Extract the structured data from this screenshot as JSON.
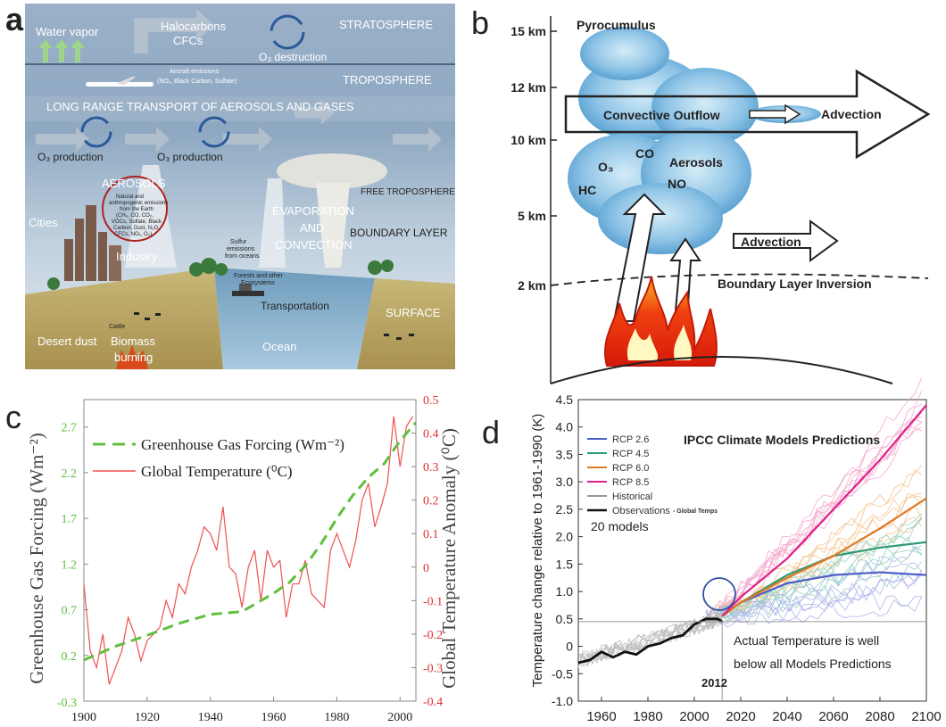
{
  "panels": {
    "a": {
      "letter": "a",
      "labels": {
        "water_vapor": "Water vapor",
        "halocarbons": "Halocarbons",
        "cfcs": "CFCs",
        "stratosphere": "STRATOSPHERE",
        "o3_destruction": "O₃ destruction",
        "aircraft_1": "Aircraft emissions",
        "aircraft_2": "(NOₓ, Black Carbon, Sulfate)",
        "troposphere": "TROPOSPHERE",
        "long_range": "LONG RANGE TRANSPORT OF AEROSOLS AND GASES",
        "o3_prod_1": "O₃ production",
        "o3_prod_2": "O₃ production",
        "aerosols": "AEROSOLS",
        "emis_1": "Natural and",
        "emis_2": "anthropogenic emissions",
        "emis_3": "from the Earth",
        "emis_4": "(CH₄, CO, CO₂,",
        "emis_5": "VOCs, Sulfate, Black",
        "emis_6": "Carbon, Dust, N₂O,",
        "emis_7": "CFCs, NOₓ, O₃)",
        "cities": "Cities",
        "industry": "Industry",
        "sulfur_1": "Sulfur",
        "sulfur_2": "emissions",
        "sulfur_3": "from oceans",
        "evap_1": "EVAPORATION",
        "evap_2": "AND",
        "evap_3": "CONVECTION",
        "free_trop": "FREE TROPOSPHERE",
        "boundary": "BOUNDARY LAYER",
        "forests_1": "Forests and other",
        "forests_2": "Ecosystems",
        "transportation": "Transportation",
        "surface": "SURFACE",
        "cattle": "Cattle",
        "desert_dust": "Desert dust",
        "biomass_1": "Biomass",
        "biomass_2": "burning",
        "ocean": "Ocean"
      }
    },
    "b": {
      "letter": "b",
      "altitudes": [
        "15 km",
        "12 km",
        "10 km",
        "5 km",
        "2 km"
      ],
      "pyrocumulus": "Pyrocumulus",
      "convective_outflow": "Convective Outflow",
      "advection_top": "Advection",
      "o3": "O₃",
      "co": "CO",
      "aerosols": "Aerosols",
      "hc": "HC",
      "no": "NO",
      "advection_mid": "Advection",
      "boundary_inversion": "Boundary Layer Inversion"
    },
    "c": {
      "letter": "c",
      "legend": [
        "Greenhouse Gas Forcing (Wm⁻²)",
        "Global Temperature (⁰C)"
      ],
      "ylabel_left": "Greenhouse Gas Forcing (Wm⁻²)",
      "ylabel_right": "Global Temperature Anomaly (⁰C)",
      "colors": {
        "forcing": "#5fbf3f",
        "temperature": "#f05050"
      }
    },
    "d": {
      "letter": "d",
      "title": "IPCC Climate Models Predictions",
      "legend": [
        "RCP 2.6",
        "RCP 4.5",
        "RCP 6.0",
        "RCP 8.5",
        "Historical",
        "Observations"
      ],
      "legend_note": "- Global Temps",
      "models": "20 models",
      "ylabel": "Temperature change relative to 1961-1990 (K)",
      "annotation_1": "Actual Temperature is well",
      "annotation_2": "below all Models Predictions",
      "year_marker": "2012",
      "colors": {
        "rcp26": "#4d5ec8",
        "rcp45": "#2a9a78",
        "rcp60": "#e07820",
        "rcp85": "#e0208a",
        "historical": "#999999",
        "observations": "#111111"
      }
    }
  },
  "chart_data": [
    {
      "type": "line",
      "panel": "c",
      "x_ticks": [
        1900,
        1920,
        1940,
        1960,
        1980,
        2000
      ],
      "xlim": [
        1900,
        2005
      ],
      "y_left_ticks": [
        0.2,
        0.7,
        1.2,
        1.7,
        2.2,
        2.7
      ],
      "y_left_ticklabels": [
        "0.2",
        "0.7",
        "1.2",
        "1.7",
        "2.2",
        "2.7"
      ],
      "y_left_bottom_label": "-0.3",
      "ylim_left": [
        -0.3,
        3.0
      ],
      "y_right_ticks": [
        -0.4,
        -0.3,
        -0.2,
        -0.1,
        0,
        0.1,
        0.2,
        0.3,
        0.4,
        0.5
      ],
      "ylim_right": [
        -0.4,
        0.5
      ],
      "series": [
        {
          "name": "Greenhouse Gas Forcing (Wm⁻²)",
          "axis": "left",
          "x": [
            1900,
            1910,
            1920,
            1930,
            1940,
            1950,
            1960,
            1965,
            1970,
            1975,
            1980,
            1985,
            1990,
            1995,
            2000,
            2005
          ],
          "values": [
            0.15,
            0.3,
            0.42,
            0.55,
            0.65,
            0.68,
            0.88,
            1.0,
            1.18,
            1.42,
            1.7,
            1.95,
            2.15,
            2.3,
            2.55,
            2.75
          ]
        },
        {
          "name": "Global Temperature (⁰C)",
          "axis": "right",
          "x": [
            1900,
            1902,
            1904,
            1906,
            1908,
            1910,
            1912,
            1914,
            1916,
            1918,
            1920,
            1922,
            1924,
            1926,
            1928,
            1930,
            1932,
            1934,
            1936,
            1938,
            1940,
            1942,
            1944,
            1946,
            1948,
            1950,
            1952,
            1954,
            1956,
            1958,
            1960,
            1962,
            1964,
            1966,
            1968,
            1970,
            1972,
            1974,
            1976,
            1978,
            1980,
            1982,
            1984,
            1986,
            1988,
            1990,
            1992,
            1994,
            1996,
            1998,
            2000,
            2002,
            2004
          ],
          "values": [
            -0.05,
            -0.25,
            -0.3,
            -0.2,
            -0.35,
            -0.3,
            -0.25,
            -0.15,
            -0.2,
            -0.28,
            -0.22,
            -0.2,
            -0.18,
            -0.1,
            -0.15,
            -0.05,
            -0.08,
            0.0,
            0.05,
            0.12,
            0.1,
            0.05,
            0.18,
            0.0,
            -0.02,
            -0.12,
            0.0,
            0.05,
            -0.1,
            0.05,
            0.0,
            0.02,
            -0.15,
            -0.05,
            -0.05,
            0.02,
            -0.08,
            -0.1,
            -0.12,
            0.05,
            0.1,
            0.05,
            0.0,
            0.08,
            0.2,
            0.25,
            0.12,
            0.18,
            0.25,
            0.45,
            0.3,
            0.42,
            0.45
          ]
        }
      ]
    },
    {
      "type": "line",
      "panel": "d",
      "x_ticks": [
        1960,
        1980,
        2000,
        2020,
        2040,
        2060,
        2080,
        2100
      ],
      "xlim": [
        1950,
        2100
      ],
      "y_ticks": [
        -1.0,
        -0.5,
        0,
        0.5,
        1.0,
        1.5,
        2.0,
        2.5,
        3.0,
        3.5,
        4.0,
        4.5
      ],
      "y_ticklabels": [
        "-1.0",
        "-0.5",
        "0",
        "0.5",
        "1.0",
        "1.5",
        "2.0",
        "2.5",
        "3.0",
        "3.5",
        "4.0",
        "4.5"
      ],
      "ylim": [
        -1.0,
        4.5
      ],
      "reference_line_y": 0.45,
      "series": [
        {
          "name": "RCP 2.6",
          "x": [
            2012,
            2020,
            2040,
            2060,
            2080,
            2100
          ],
          "values": [
            0.55,
            0.8,
            1.15,
            1.3,
            1.35,
            1.3
          ]
        },
        {
          "name": "RCP 4.5",
          "x": [
            2012,
            2020,
            2040,
            2060,
            2080,
            2100
          ],
          "values": [
            0.55,
            0.8,
            1.3,
            1.65,
            1.8,
            1.9
          ]
        },
        {
          "name": "RCP 6.0",
          "x": [
            2012,
            2020,
            2040,
            2060,
            2080,
            2100
          ],
          "values": [
            0.55,
            0.8,
            1.25,
            1.65,
            2.15,
            2.7
          ]
        },
        {
          "name": "RCP 8.5",
          "x": [
            2012,
            2020,
            2040,
            2060,
            2080,
            2100
          ],
          "values": [
            0.55,
            0.9,
            1.6,
            2.5,
            3.4,
            4.4
          ]
        },
        {
          "name": "Observations",
          "x": [
            1950,
            1955,
            1960,
            1965,
            1970,
            1975,
            1980,
            1985,
            1990,
            1995,
            2000,
            2005,
            2010,
            2012
          ],
          "values": [
            -0.3,
            -0.25,
            -0.1,
            -0.2,
            -0.1,
            -0.15,
            0.0,
            0.05,
            0.15,
            0.2,
            0.4,
            0.5,
            0.5,
            0.45
          ]
        }
      ]
    }
  ]
}
